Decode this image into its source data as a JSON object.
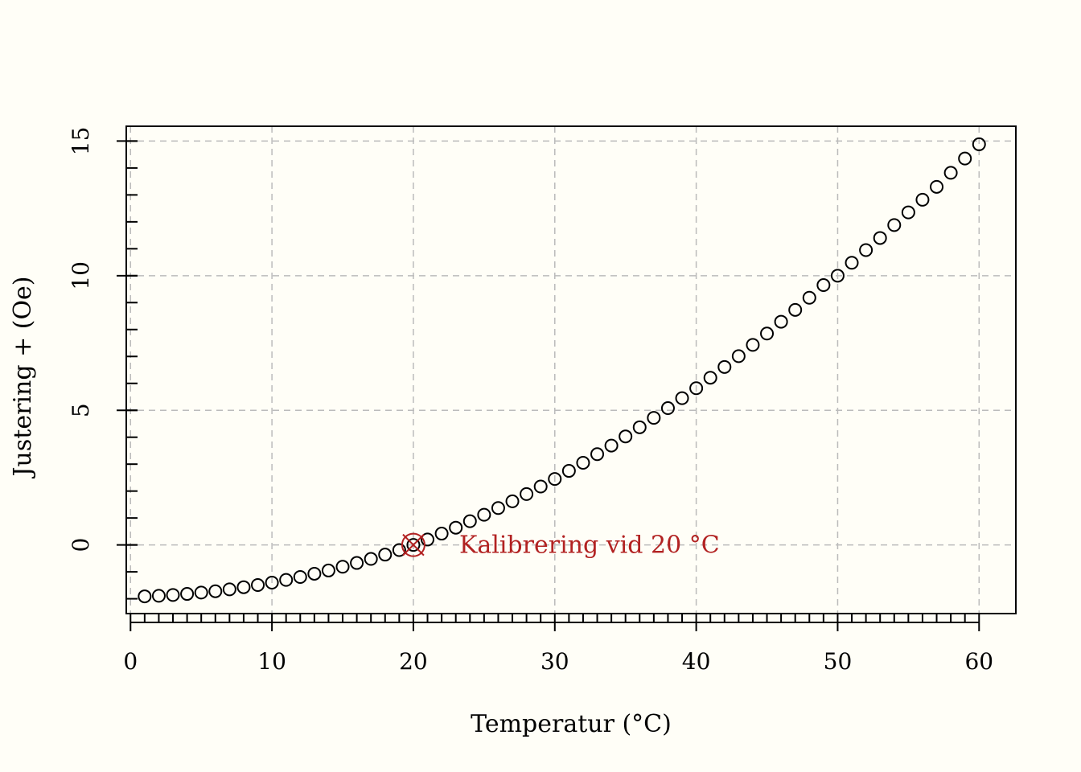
{
  "chart_data": {
    "type": "scatter",
    "title": "",
    "xlabel": "Temperatur (°C)",
    "ylabel": "Justering + (Oe)",
    "xlim": [
      -0.3,
      62.6
    ],
    "ylim": [
      -2.55,
      15.55
    ],
    "x_ticks": [
      0,
      10,
      20,
      30,
      40,
      50,
      60
    ],
    "x_tick_labels": [
      "0",
      "10",
      "20",
      "30",
      "40",
      "50",
      "60"
    ],
    "x_minor_tick_step": 1,
    "y_ticks": [
      0,
      5,
      10,
      15
    ],
    "y_tick_labels": [
      "0",
      "5",
      "10",
      "15"
    ],
    "y_minor_tick_step": 1,
    "grid": true,
    "legend": "none",
    "x": [
      1,
      2,
      3,
      4,
      5,
      6,
      7,
      8,
      9,
      10,
      11,
      12,
      13,
      14,
      15,
      16,
      17,
      18,
      19,
      20,
      21,
      22,
      23,
      24,
      25,
      26,
      27,
      28,
      29,
      30,
      31,
      32,
      33,
      34,
      35,
      36,
      37,
      38,
      39,
      40,
      41,
      42,
      43,
      44,
      45,
      46,
      47,
      48,
      49,
      50,
      51,
      52,
      53,
      54,
      55,
      56,
      57,
      58,
      59,
      60
    ],
    "y": [
      -1.91,
      -1.89,
      -1.86,
      -1.82,
      -1.77,
      -1.72,
      -1.65,
      -1.57,
      -1.49,
      -1.4,
      -1.3,
      -1.19,
      -1.07,
      -0.95,
      -0.81,
      -0.67,
      -0.52,
      -0.36,
      -0.19,
      0.0,
      0.2,
      0.42,
      0.64,
      0.88,
      1.12,
      1.37,
      1.62,
      1.89,
      2.17,
      2.45,
      2.75,
      3.05,
      3.37,
      3.69,
      4.03,
      4.37,
      4.72,
      5.08,
      5.45,
      5.82,
      6.21,
      6.61,
      7.01,
      7.43,
      7.85,
      8.29,
      8.73,
      9.18,
      9.65,
      10.0,
      10.48,
      10.95,
      11.4,
      11.88,
      12.35,
      12.82,
      13.3,
      13.82,
      14.35,
      14.88
    ],
    "point_color": "#000000",
    "annotation": {
      "x": 20,
      "y": 0,
      "text": "Kalibrering vid 20 °C",
      "color": "#b22222"
    }
  }
}
